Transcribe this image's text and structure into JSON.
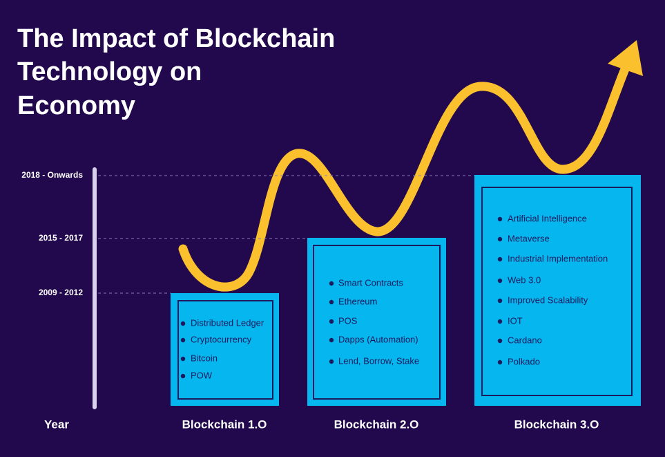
{
  "title": [
    "The Impact of Blockchain",
    "Technology on",
    "Economy"
  ],
  "timeline": {
    "axis_label": "Year",
    "periods": [
      "2018 - Onwards",
      "2015 - 2017",
      "2009 - 2012"
    ]
  },
  "stages": [
    {
      "name": "Blockchain 1.O",
      "items": [
        "Distributed Ledger",
        "Cryptocurrency",
        "Bitcoin",
        "POW"
      ]
    },
    {
      "name": "Blockchain 2.O",
      "items": [
        "Smart Contracts",
        "Ethereum",
        "POS",
        "Dapps (Automation)",
        "Lend, Borrow, Stake"
      ]
    },
    {
      "name": "Blockchain 3.O",
      "items": [
        "Artificial Intelligence",
        "Metaverse",
        "Industrial Implementation",
        "Web 3.0",
        "Improved Scalability",
        "IOT",
        "Cardano",
        "Polkado"
      ]
    }
  ]
}
